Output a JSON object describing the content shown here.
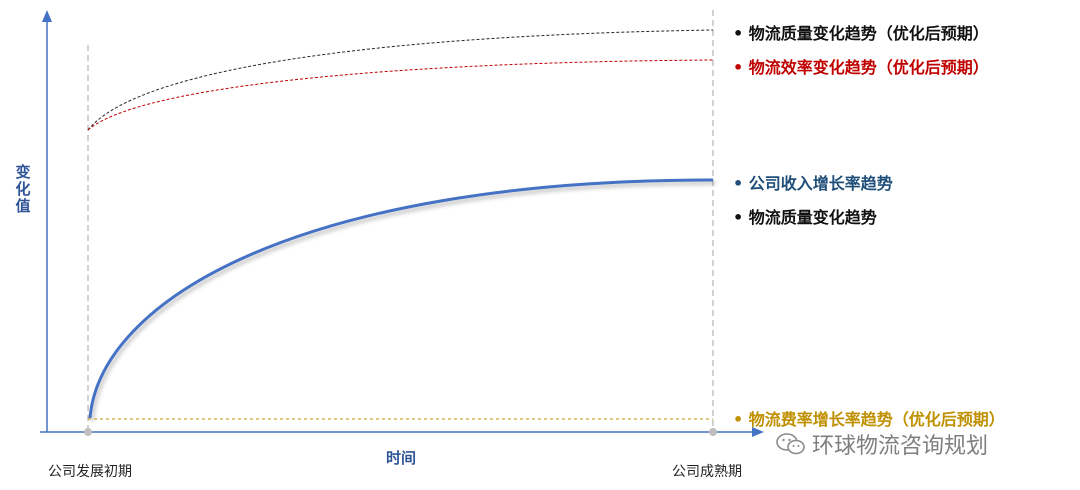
{
  "chart_data": {
    "type": "line",
    "ylabel": "变化值",
    "xlabel": "时间",
    "x_ticks": [
      "公司发展初期",
      "公司成熟期"
    ],
    "series": [
      {
        "name": "物流质量变化趋势（优化后预期）",
        "style": "dashed",
        "color": "#262626"
      },
      {
        "name": "物流效率变化趋势（优化后预期）",
        "style": "dashed",
        "color": "#c00000"
      },
      {
        "name": "公司收入增长率趋势",
        "style": "solid",
        "color": "#4472c4"
      },
      {
        "name": "物流质量变化趋势",
        "style": "solid",
        "color": "#262626"
      },
      {
        "name": "物流费率增长率趋势（优化后预期）",
        "style": "dashed",
        "color": "#bf9000"
      }
    ],
    "grid": false
  },
  "legend_colors": {
    "quality_opt": "#111111",
    "efficiency_opt": "#c00000",
    "revenue": "#1f4e79",
    "quality": "#111111",
    "fee_opt": "#bf9000"
  },
  "watermark": {
    "text": "环球物流咨询规划",
    "icon": "wechat-icon"
  }
}
